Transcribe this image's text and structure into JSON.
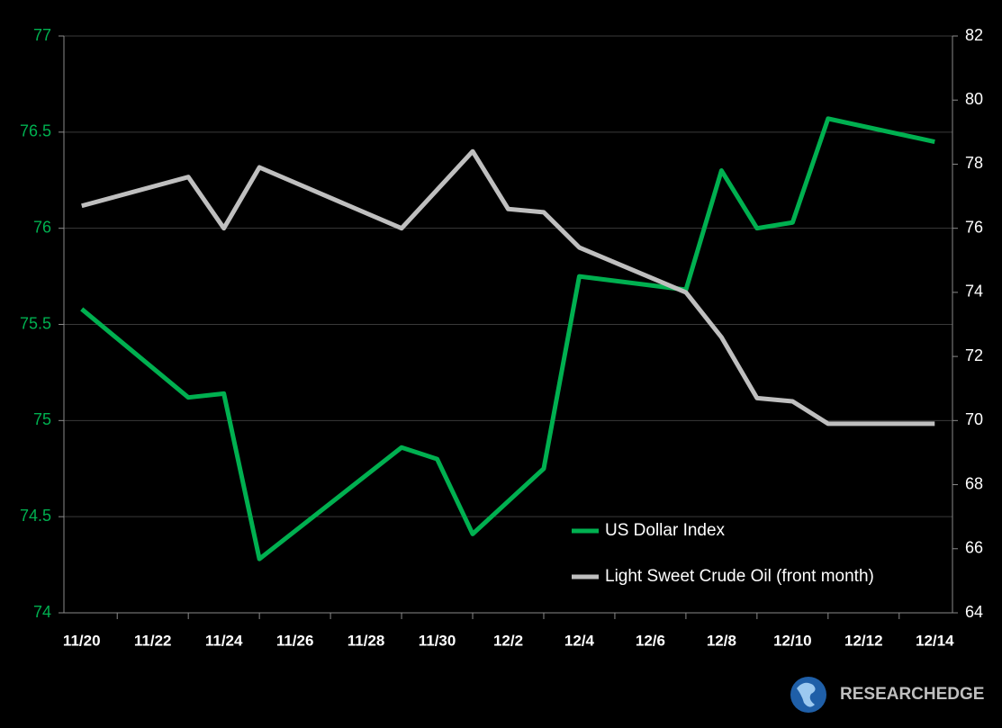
{
  "chart_data": {
    "type": "line",
    "x": [
      "11/20",
      "11/23",
      "11/24",
      "11/25",
      "11/29",
      "11/30",
      "12/1",
      "12/2",
      "12/3",
      "12/4",
      "12/7",
      "12/8",
      "12/9",
      "12/10",
      "12/11",
      "12/14"
    ],
    "xticks": [
      "11/20",
      "11/22",
      "11/24",
      "11/26",
      "11/28",
      "11/30",
      "12/2",
      "12/4",
      "12/6",
      "12/8",
      "12/10",
      "12/12",
      "12/14"
    ],
    "series": [
      {
        "name": "US Dollar Index",
        "color": "#00b050",
        "axis": "y",
        "values": [
          75.58,
          75.12,
          75.14,
          74.28,
          74.86,
          74.8,
          74.41,
          74.58,
          74.75,
          75.75,
          75.68,
          76.3,
          76.0,
          76.03,
          76.57,
          76.45
        ]
      },
      {
        "name": "Light Sweet Crude Oil (front month)",
        "color": "#bfbfbf",
        "axis": "y2",
        "values": [
          76.7,
          77.6,
          76.0,
          77.9,
          76.0,
          77.2,
          78.4,
          76.6,
          76.5,
          75.4,
          74.0,
          72.6,
          70.7,
          70.6,
          69.9,
          69.9
        ]
      }
    ],
    "ylim": [
      74,
      77
    ],
    "yticks": [
      74,
      74.5,
      75,
      75.5,
      76,
      76.5,
      77
    ],
    "ytick_color": "#00b050",
    "y2lim": [
      64,
      82
    ],
    "y2ticks": [
      64,
      66,
      68,
      70,
      72,
      74,
      76,
      78,
      80,
      82
    ],
    "grid": true
  },
  "logo": "RESEARCHEDGE"
}
